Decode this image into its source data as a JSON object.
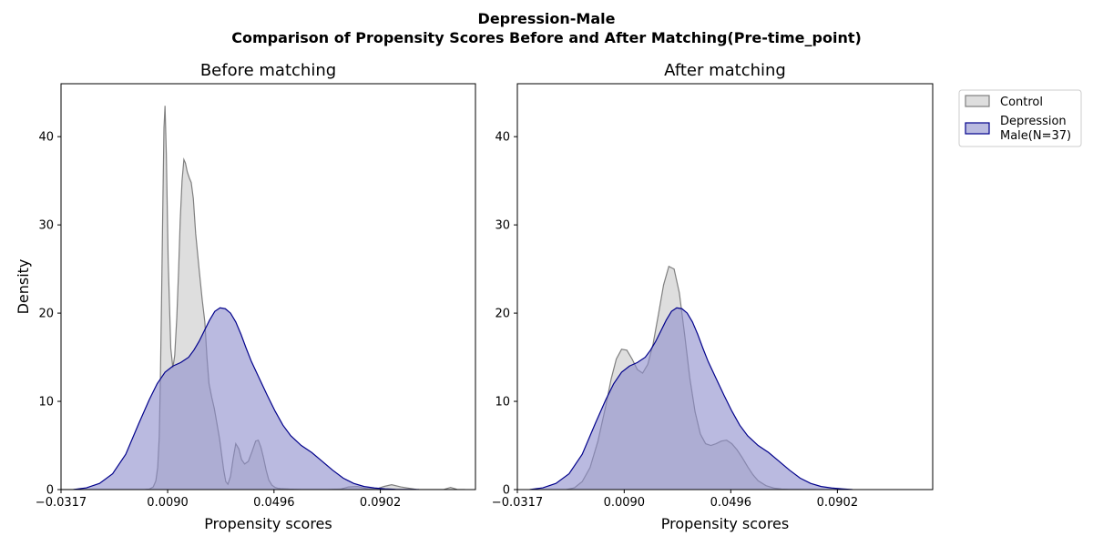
{
  "figure": {
    "title_line1": "Depression-Male",
    "title_line2": "Comparison of Propensity Scores Before and After Matching(Pre-time_point)"
  },
  "legend": {
    "items": [
      {
        "label_lines": [
          "Control"
        ],
        "fill": "#dedede",
        "stroke": "#7f7f7f"
      },
      {
        "label_lines": [
          "Depression",
          "Male(N=37)"
        ],
        "fill": "#babbe0",
        "stroke": "#00008b"
      }
    ]
  },
  "colors": {
    "control_fill": "#c8c8c8",
    "control_line": "#7f7f7f",
    "treated_fill": "#8c8ccc",
    "treated_line": "#00008b"
  },
  "chart_data": [
    {
      "type": "area",
      "title": "Before matching",
      "xlabel": "Propensity scores",
      "ylabel": "Density",
      "xlim": [
        -0.0317,
        0.1265
      ],
      "ylim": [
        0,
        46
      ],
      "xticks": [
        -0.0317,
        0.009,
        0.0496,
        0.0902
      ],
      "xtick_labels": [
        "−0.0317",
        "0.0090",
        "0.0496",
        "0.0902"
      ],
      "yticks": [
        0,
        10,
        20,
        30,
        40
      ],
      "ytick_labels": [
        "0",
        "10",
        "20",
        "30",
        "40"
      ],
      "series": [
        {
          "name": "Control",
          "x": [
            -0.0317,
            0.0,
            0.002,
            0.0035,
            0.0045,
            0.0052,
            0.0058,
            0.0062,
            0.0067,
            0.0072,
            0.0076,
            0.008,
            0.0085,
            0.0092,
            0.0102,
            0.011,
            0.0117,
            0.0125,
            0.0132,
            0.0138,
            0.0145,
            0.0152,
            0.0158,
            0.0165,
            0.0173,
            0.018,
            0.0188,
            0.0197,
            0.021,
            0.0222,
            0.0232,
            0.024,
            0.0248,
            0.0258,
            0.0268,
            0.0278,
            0.0288,
            0.0296,
            0.0304,
            0.0312,
            0.032,
            0.033,
            0.034,
            0.035,
            0.0362,
            0.0372,
            0.0384,
            0.0398,
            0.0412,
            0.0426,
            0.0436,
            0.0446,
            0.0456,
            0.0466,
            0.0476,
            0.0488,
            0.05,
            0.051,
            0.0522,
            0.0538,
            0.0555,
            0.0575,
            0.06,
            0.065,
            0.07,
            0.075,
            0.078,
            0.0815,
            0.085,
            0.0885,
            0.0915,
            0.0945,
            0.098,
            0.104,
            0.11,
            0.1145,
            0.117,
            0.1195,
            0.1225
          ],
          "y": [
            0,
            0,
            0.05,
            0.3,
            1.0,
            2.5,
            6.0,
            12.0,
            22.0,
            33.0,
            41.0,
            43.5,
            38.0,
            26.0,
            16.0,
            13.8,
            15.2,
            19.5,
            25.0,
            30.5,
            35.0,
            37.4,
            37.0,
            36.0,
            35.3,
            34.8,
            33.0,
            29.0,
            25.0,
            21.5,
            19.0,
            15.0,
            12.0,
            10.5,
            9.2,
            7.5,
            5.8,
            4.0,
            2.2,
            0.9,
            0.6,
            1.5,
            3.5,
            5.2,
            4.6,
            3.4,
            2.9,
            3.2,
            4.3,
            5.5,
            5.6,
            4.8,
            3.6,
            2.2,
            1.1,
            0.5,
            0.25,
            0.15,
            0.1,
            0.08,
            0.05,
            0.03,
            0.02,
            0.02,
            0.02,
            0.05,
            0.3,
            0.35,
            0.1,
            0.05,
            0.35,
            0.55,
            0.3,
            0.02,
            0.0,
            0.02,
            0.25,
            0.02,
            0
          ]
        },
        {
          "name": "Depression Male(N=37)",
          "x": [
            -0.027,
            -0.022,
            -0.017,
            -0.012,
            -0.007,
            -0.002,
            0.002,
            0.005,
            0.008,
            0.011,
            0.014,
            0.017,
            0.019,
            0.021,
            0.023,
            0.025,
            0.027,
            0.029,
            0.031,
            0.033,
            0.035,
            0.037,
            0.039,
            0.041,
            0.044,
            0.047,
            0.05,
            0.053,
            0.056,
            0.06,
            0.064,
            0.068,
            0.072,
            0.076,
            0.08,
            0.084,
            0.088,
            0.092,
            0.096,
            0.1,
            0.105
          ],
          "y": [
            0,
            0.2,
            0.7,
            1.8,
            4.0,
            7.5,
            10.2,
            12.0,
            13.3,
            14.0,
            14.4,
            15.0,
            15.8,
            16.8,
            18.0,
            19.2,
            20.2,
            20.6,
            20.5,
            20.0,
            19.0,
            17.6,
            16.0,
            14.5,
            12.6,
            10.7,
            8.9,
            7.3,
            6.1,
            5.0,
            4.2,
            3.2,
            2.2,
            1.3,
            0.7,
            0.35,
            0.18,
            0.08,
            0.03,
            0.01,
            0
          ]
        }
      ]
    },
    {
      "type": "area",
      "title": "After matching",
      "xlabel": "Propensity scores",
      "ylabel": "",
      "xlim": [
        -0.0317,
        0.1265
      ],
      "ylim": [
        0,
        46
      ],
      "xticks": [
        -0.0317,
        0.009,
        0.0496,
        0.0902
      ],
      "xtick_labels": [
        "−0.0317",
        "0.0090",
        "0.0496",
        "0.0902"
      ],
      "yticks": [
        0,
        10,
        20,
        30,
        40
      ],
      "ytick_labels": [
        "0",
        "10",
        "20",
        "30",
        "40"
      ],
      "series": [
        {
          "name": "Control",
          "x": [
            -0.013,
            -0.01,
            -0.007,
            -0.004,
            -0.001,
            0.002,
            0.004,
            0.006,
            0.008,
            0.01,
            0.012,
            0.014,
            0.016,
            0.018,
            0.02,
            0.022,
            0.024,
            0.026,
            0.028,
            0.03,
            0.032,
            0.034,
            0.036,
            0.038,
            0.04,
            0.042,
            0.044,
            0.046,
            0.048,
            0.05,
            0.052,
            0.054,
            0.056,
            0.058,
            0.06,
            0.063,
            0.066,
            0.069,
            0.072,
            0.075,
            0.078,
            0.082
          ],
          "y": [
            0,
            0.2,
            0.9,
            2.5,
            5.5,
            9.5,
            12.5,
            14.8,
            15.9,
            15.8,
            14.8,
            13.6,
            13.2,
            14.2,
            16.5,
            19.8,
            23.2,
            25.3,
            25.0,
            22.3,
            17.6,
            12.6,
            8.8,
            6.3,
            5.2,
            5.0,
            5.2,
            5.5,
            5.6,
            5.2,
            4.5,
            3.6,
            2.6,
            1.7,
            1.0,
            0.45,
            0.17,
            0.06,
            0.02,
            0.01,
            0,
            0
          ]
        },
        {
          "name": "Depression Male(N=37)",
          "x": [
            -0.027,
            -0.022,
            -0.017,
            -0.012,
            -0.007,
            -0.002,
            0.002,
            0.005,
            0.008,
            0.011,
            0.014,
            0.017,
            0.019,
            0.021,
            0.023,
            0.025,
            0.027,
            0.029,
            0.031,
            0.033,
            0.035,
            0.037,
            0.039,
            0.041,
            0.044,
            0.047,
            0.05,
            0.053,
            0.056,
            0.06,
            0.064,
            0.068,
            0.072,
            0.076,
            0.08,
            0.084,
            0.088,
            0.092,
            0.096
          ],
          "y": [
            0,
            0.2,
            0.7,
            1.8,
            4.0,
            7.5,
            10.2,
            12.0,
            13.3,
            14.0,
            14.4,
            15.0,
            15.8,
            16.8,
            18.0,
            19.2,
            20.2,
            20.6,
            20.5,
            20.0,
            19.0,
            17.6,
            16.0,
            14.5,
            12.6,
            10.7,
            8.9,
            7.3,
            6.1,
            5.0,
            4.2,
            3.2,
            2.2,
            1.3,
            0.7,
            0.35,
            0.18,
            0.08,
            0
          ]
        }
      ]
    }
  ]
}
